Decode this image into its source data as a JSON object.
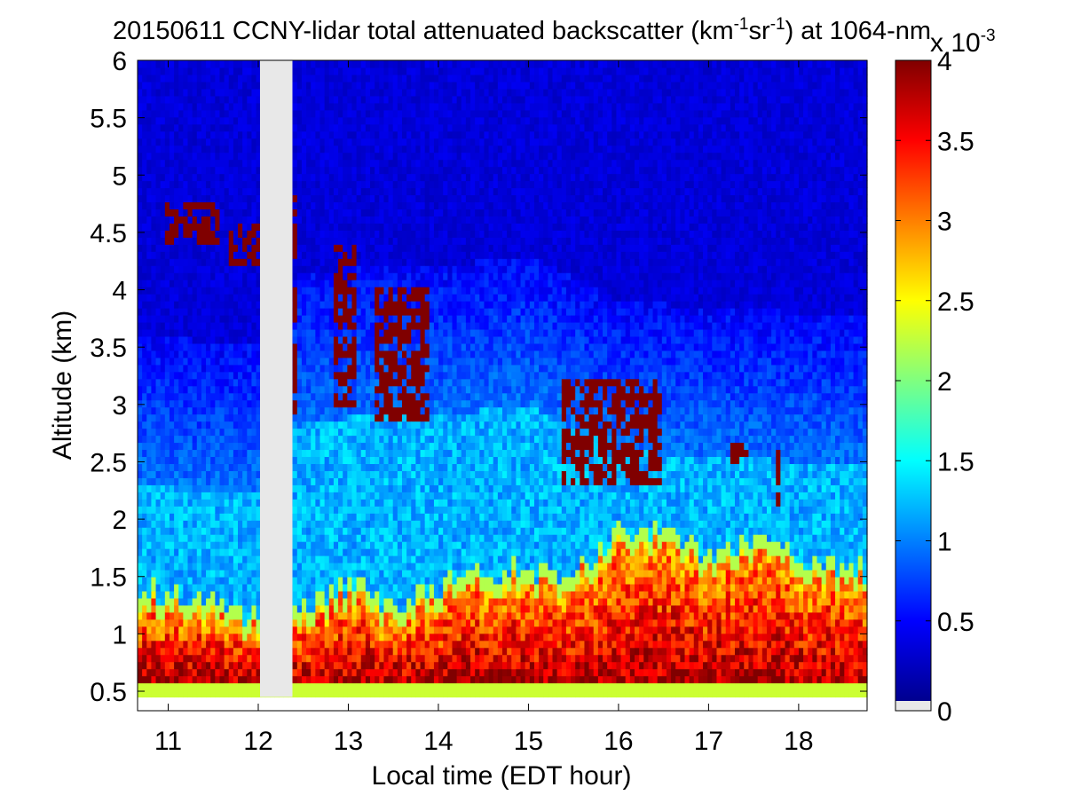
{
  "chart_data": {
    "type": "heatmap",
    "title_prefix": "20150611 CCNY-lidar total attenuated backscatter (km",
    "title_sup1": "-1",
    "title_mid": "sr",
    "title_sup2": "-1",
    "title_suffix": ") at 1064-nm",
    "xlabel": "Local time (EDT hour)",
    "ylabel": "Altitude (km)",
    "xlim": [
      10.66,
      18.76
    ],
    "ylim": [
      0.33,
      6.0
    ],
    "xticks": [
      "11",
      "12",
      "13",
      "14",
      "15",
      "16",
      "17",
      "18"
    ],
    "yticks": [
      "0.5",
      "1",
      "1.5",
      "2",
      "2.5",
      "3",
      "3.5",
      "4",
      "4.5",
      "5",
      "5.5",
      "6"
    ],
    "data_altitude_range": [
      0.45,
      6.0
    ],
    "data_gap_hours": [
      12.02,
      12.38
    ],
    "colorbar": {
      "colormap": "jet",
      "range": [
        0,
        4
      ],
      "ticks": [
        "0",
        "0.5",
        "1",
        "1.5",
        "2",
        "2.5",
        "3",
        "3.5",
        "4"
      ],
      "exponent_base": "x 10",
      "exponent_power": "-3",
      "under_color": "#e8e8e8"
    },
    "features": {
      "boundary_layer_top_km": [
        [
          10.7,
          1.25
        ],
        [
          11.3,
          1.25
        ],
        [
          12.0,
          1.0
        ],
        [
          12.4,
          1.05
        ],
        [
          13.0,
          1.3
        ],
        [
          13.5,
          1.1
        ],
        [
          14.0,
          1.3
        ],
        [
          14.5,
          1.4
        ],
        [
          15.0,
          1.45
        ],
        [
          15.5,
          1.4
        ],
        [
          16.0,
          1.75
        ],
        [
          16.5,
          1.75
        ],
        [
          17.0,
          1.55
        ],
        [
          17.5,
          1.7
        ],
        [
          18.0,
          1.55
        ],
        [
          18.76,
          1.45
        ]
      ],
      "residual_layer_top_km": [
        [
          10.7,
          2.3
        ],
        [
          11.5,
          2.25
        ],
        [
          12.0,
          2.25
        ],
        [
          12.4,
          2.8
        ],
        [
          13.0,
          2.9
        ],
        [
          14.0,
          2.9
        ],
        [
          15.0,
          3.0
        ],
        [
          16.0,
          2.6
        ],
        [
          17.0,
          2.55
        ],
        [
          18.0,
          2.5
        ],
        [
          18.76,
          2.5
        ]
      ],
      "cloud_patches": [
        {
          "t": [
            10.95,
            11.55
          ],
          "z": [
            4.4,
            4.75
          ]
        },
        {
          "t": [
            11.65,
            12.02
          ],
          "z": [
            4.2,
            4.6
          ]
        },
        {
          "t": [
            12.38,
            12.45
          ],
          "z": [
            2.75,
            4.85
          ]
        },
        {
          "t": [
            12.85,
            13.1
          ],
          "z": [
            2.95,
            4.4
          ]
        },
        {
          "t": [
            13.3,
            13.9
          ],
          "z": [
            2.85,
            4.0
          ]
        },
        {
          "t": [
            15.35,
            16.5
          ],
          "z": [
            2.3,
            3.2
          ]
        },
        {
          "t": [
            17.25,
            17.45
          ],
          "z": [
            2.5,
            2.65
          ]
        },
        {
          "t": [
            17.75,
            17.8
          ],
          "z": [
            2.1,
            2.75
          ]
        }
      ]
    }
  }
}
